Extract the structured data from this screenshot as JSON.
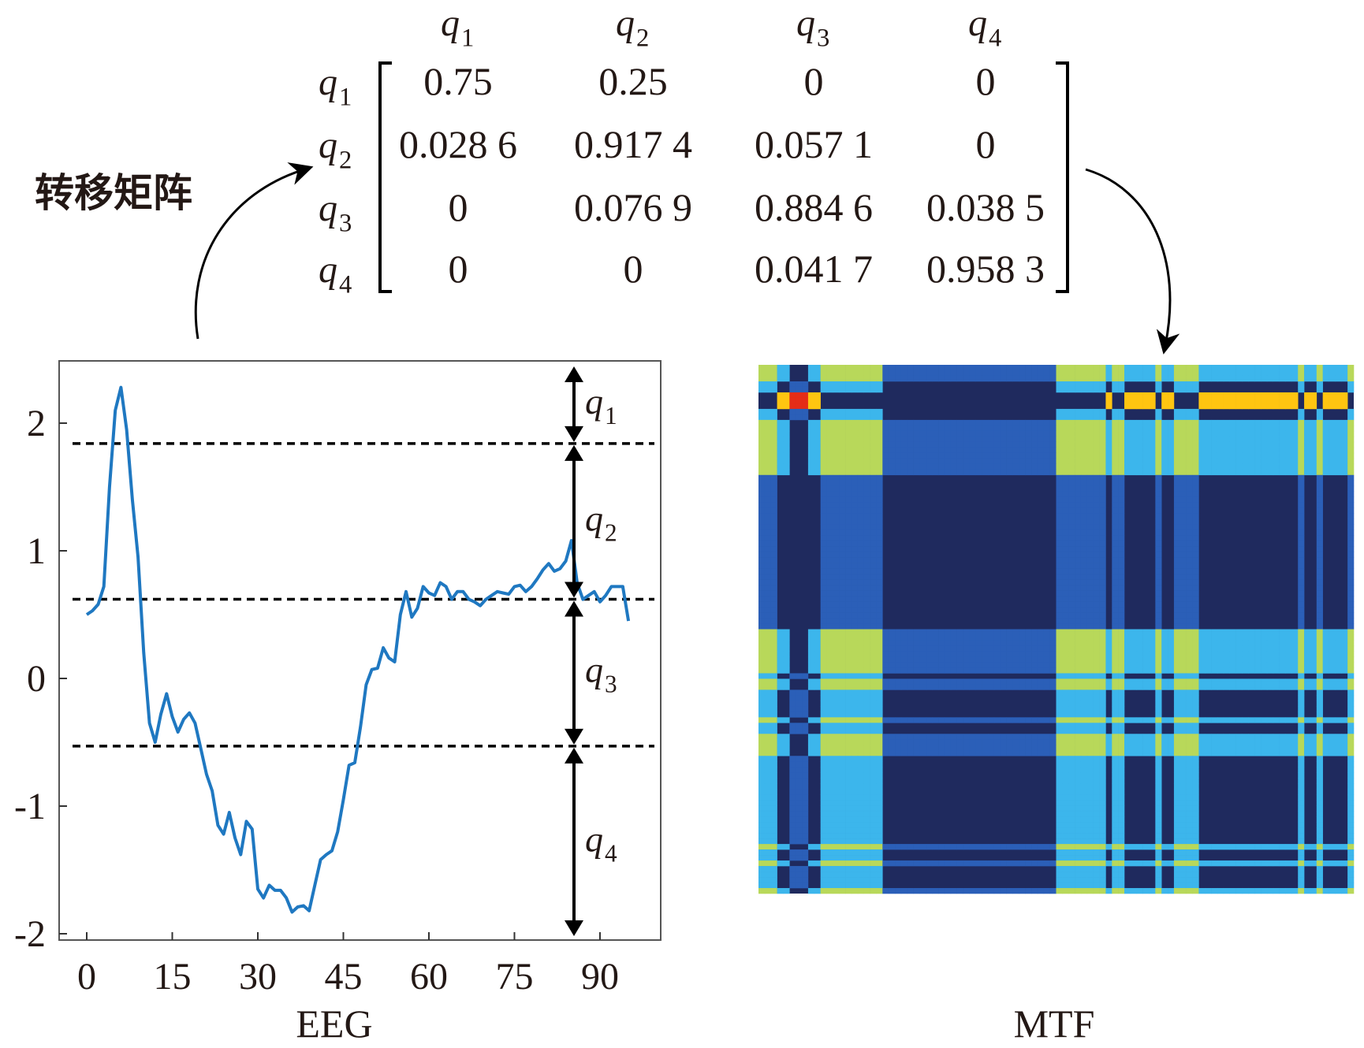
{
  "title_cn": "转移矩阵",
  "matrix": {
    "states": [
      {
        "sym": "q",
        "sub": "1"
      },
      {
        "sym": "q",
        "sub": "2"
      },
      {
        "sym": "q",
        "sub": "3"
      },
      {
        "sym": "q",
        "sub": "4"
      }
    ],
    "values": [
      [
        "0.75",
        "0.25",
        "0",
        "0"
      ],
      [
        "0.028 6",
        "0.917 4",
        "0.057 1",
        "0"
      ],
      [
        "0",
        "0.076 9",
        "0.884 6",
        "0.038 5"
      ],
      [
        "0",
        "0",
        "0.041 7",
        "0.958 3"
      ]
    ],
    "numeric": [
      [
        0.75,
        0.25,
        0,
        0
      ],
      [
        0.0286,
        0.9174,
        0.0571,
        0
      ],
      [
        0,
        0.0769,
        0.8846,
        0.0385
      ],
      [
        0,
        0,
        0.0417,
        0.9583
      ]
    ]
  },
  "chart_data": [
    {
      "type": "line",
      "xlabel": "EEG",
      "xlim": [
        -5,
        100
      ],
      "ylim": [
        -2.05,
        2.45
      ],
      "xticks": [
        "0",
        "15",
        "30",
        "45",
        "60",
        "75",
        "90"
      ],
      "yticks": [
        "2",
        "1",
        "0",
        "-1",
        "-2"
      ],
      "color": "#1f78c1",
      "thresholds": [
        1.84,
        0.62,
        -0.53
      ],
      "state_labels": [
        {
          "sym": "q",
          "sub": "1"
        },
        {
          "sym": "q",
          "sub": "2"
        },
        {
          "sym": "q",
          "sub": "3"
        },
        {
          "sym": "q",
          "sub": "4"
        }
      ],
      "y": [
        0.5,
        0.53,
        0.58,
        0.72,
        1.5,
        2.1,
        2.28,
        1.95,
        1.4,
        0.95,
        0.2,
        -0.35,
        -0.5,
        -0.28,
        -0.12,
        -0.3,
        -0.42,
        -0.32,
        -0.27,
        -0.35,
        -0.55,
        -0.75,
        -0.88,
        -1.15,
        -1.22,
        -1.05,
        -1.25,
        -1.38,
        -1.12,
        -1.18,
        -1.65,
        -1.72,
        -1.62,
        -1.66,
        -1.66,
        -1.72,
        -1.83,
        -1.79,
        -1.78,
        -1.82,
        -1.62,
        -1.42,
        -1.38,
        -1.35,
        -1.2,
        -0.95,
        -0.68,
        -0.66,
        -0.38,
        -0.05,
        0.07,
        0.08,
        0.24,
        0.16,
        0.13,
        0.5,
        0.68,
        0.48,
        0.55,
        0.72,
        0.67,
        0.65,
        0.75,
        0.72,
        0.62,
        0.68,
        0.68,
        0.62,
        0.6,
        0.57,
        0.62,
        0.65,
        0.68,
        0.67,
        0.66,
        0.72,
        0.73,
        0.68,
        0.72,
        0.78,
        0.85,
        0.9,
        0.84,
        0.86,
        0.92,
        1.08,
        0.75,
        0.62,
        0.65,
        0.68,
        0.6,
        0.65,
        0.72,
        0.72,
        0.72,
        0.45
      ]
    },
    {
      "type": "heatmap",
      "xlabel": "MTF",
      "colors": {
        "zero": "#1f2a5e",
        "low": "#2b5fb8",
        "light": "#3cb6ec",
        "mid": "#b8d85a",
        "yellow": "#ffc511",
        "red": "#e52d17"
      }
    }
  ]
}
